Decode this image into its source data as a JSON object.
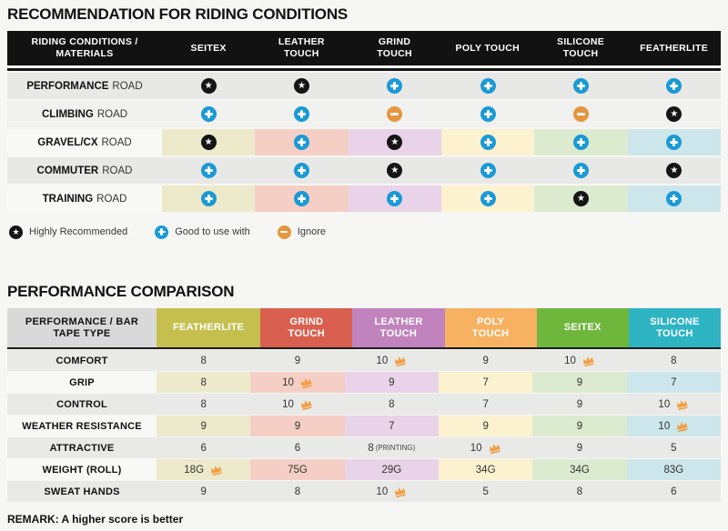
{
  "colors": {
    "icon_star_bg": "#151515",
    "icon_plus_bg": "#1a9ad6",
    "icon_minus_bg": "#e6953f",
    "crown": "#f39c3d",
    "table1_header_bg": "#121212",
    "pastel_columns": [
      "#edeacc",
      "#f5cfc5",
      "#e9d3e8",
      "#fcf2cf",
      "#dcebd0",
      "#cde6eb"
    ]
  },
  "chart_data": [
    {
      "type": "table",
      "title": "RECOMMENDATION FOR RIDING CONDITIONS",
      "columns": [
        "RIDING CONDITIONS / MATERIALS",
        "SEITEX",
        "LEATHER TOUCH",
        "GRIND TOUCH",
        "POLY TOUCH",
        "SILICONE TOUCH",
        "FEATHERLITE"
      ],
      "rows": [
        {
          "condition": "PERFORMANCE ROAD",
          "ratings": [
            "highly_recommended",
            "highly_recommended",
            "good_to_use_with",
            "good_to_use_with",
            "good_to_use_with",
            "good_to_use_with"
          ]
        },
        {
          "condition": "CLIMBING ROAD",
          "ratings": [
            "good_to_use_with",
            "good_to_use_with",
            "ignore",
            "good_to_use_with",
            "ignore",
            "highly_recommended"
          ]
        },
        {
          "condition": "GRAVEL/CX ROAD",
          "ratings": [
            "highly_recommended",
            "good_to_use_with",
            "highly_recommended",
            "good_to_use_with",
            "good_to_use_with",
            "good_to_use_with"
          ]
        },
        {
          "condition": "COMMUTER ROAD",
          "ratings": [
            "good_to_use_with",
            "good_to_use_with",
            "highly_recommended",
            "good_to_use_with",
            "good_to_use_with",
            "highly_recommended"
          ]
        },
        {
          "condition": "TRAINING ROAD",
          "ratings": [
            "good_to_use_with",
            "good_to_use_with",
            "good_to_use_with",
            "good_to_use_with",
            "highly_recommended",
            "good_to_use_with"
          ]
        }
      ],
      "legend": [
        {
          "rating": "highly_recommended",
          "label": "Highly Recommended"
        },
        {
          "rating": "good_to_use_with",
          "label": "Good to use with"
        },
        {
          "rating": "ignore",
          "label": "Ignore"
        }
      ]
    },
    {
      "type": "table",
      "title": "PERFORMANCE COMPARISON",
      "columns": [
        "PERFORMANCE / BAR TAPE TYPE",
        "FEATHERLITE",
        "GRIND TOUCH",
        "LEATHER TOUCH",
        "POLY TOUCH",
        "SEITEX",
        "SILICONE TOUCH"
      ],
      "column_colors": [
        "#d9d9d9",
        "#c5bf4f",
        "#d9604f",
        "#c183be",
        "#f6b161",
        "#6fb73c",
        "#2fb4c4"
      ],
      "rows": [
        {
          "metric": "COMFORT",
          "scores": [
            {
              "value": "8"
            },
            {
              "value": "9"
            },
            {
              "value": "10",
              "crown": true
            },
            {
              "value": "9"
            },
            {
              "value": "10",
              "crown": true
            },
            {
              "value": "8"
            }
          ]
        },
        {
          "metric": "GRIP",
          "scores": [
            {
              "value": "8"
            },
            {
              "value": "10",
              "crown": true
            },
            {
              "value": "9"
            },
            {
              "value": "7"
            },
            {
              "value": "9"
            },
            {
              "value": "7"
            }
          ]
        },
        {
          "metric": "CONTROL",
          "scores": [
            {
              "value": "8"
            },
            {
              "value": "10",
              "crown": true
            },
            {
              "value": "8"
            },
            {
              "value": "7"
            },
            {
              "value": "9"
            },
            {
              "value": "10",
              "crown": true
            }
          ]
        },
        {
          "metric": "WEATHER RESISTANCE",
          "scores": [
            {
              "value": "9"
            },
            {
              "value": "9"
            },
            {
              "value": "7"
            },
            {
              "value": "9"
            },
            {
              "value": "9"
            },
            {
              "value": "10",
              "crown": true
            }
          ]
        },
        {
          "metric": "ATTRACTIVE",
          "scores": [
            {
              "value": "6"
            },
            {
              "value": "6"
            },
            {
              "value": "8",
              "note": "(PRINTING)"
            },
            {
              "value": "10",
              "crown": true
            },
            {
              "value": "9"
            },
            {
              "value": "5"
            }
          ]
        },
        {
          "metric": "WEIGHT (ROLL)",
          "scores": [
            {
              "value": "18G",
              "crown": true
            },
            {
              "value": "75G"
            },
            {
              "value": "29G"
            },
            {
              "value": "34G"
            },
            {
              "value": "34G"
            },
            {
              "value": "83G"
            }
          ]
        },
        {
          "metric": "SWEAT HANDS",
          "scores": [
            {
              "value": "9"
            },
            {
              "value": "8"
            },
            {
              "value": "10",
              "crown": true
            },
            {
              "value": "5"
            },
            {
              "value": "8"
            },
            {
              "value": "6"
            }
          ]
        }
      ],
      "remark": "REMARK: A higher score is better"
    }
  ]
}
